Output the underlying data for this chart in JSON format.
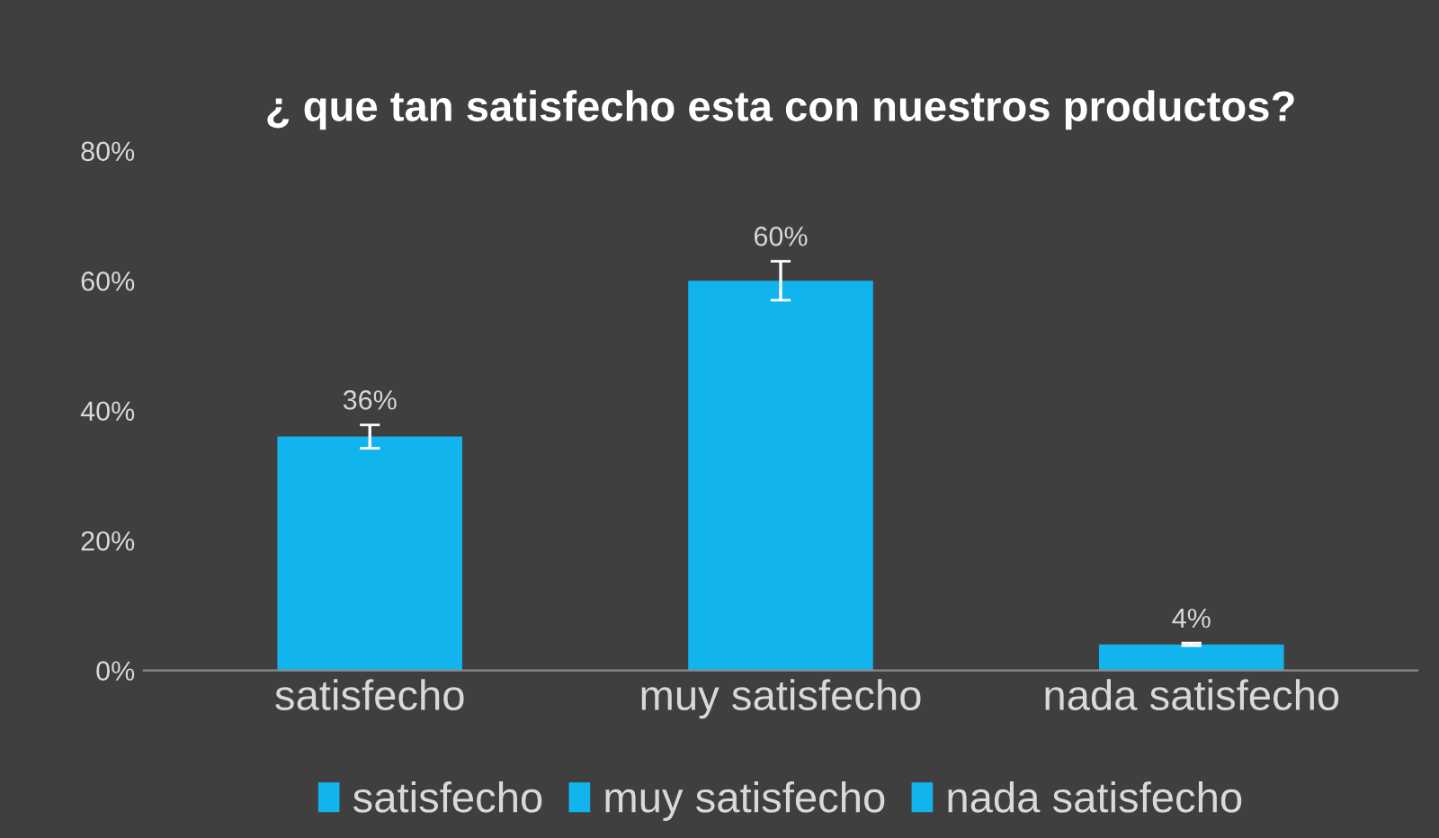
{
  "chart_data": {
    "type": "bar",
    "title": "¿ que tan satisfecho esta con nuestros productos?",
    "categories": [
      "satisfecho",
      "muy satisfecho",
      "nada satisfecho"
    ],
    "series": [
      {
        "name": "satisfecho",
        "color": "#12b4ee",
        "values": [
          36,
          null,
          null
        ],
        "errors": [
          1.8,
          null,
          null
        ],
        "value_labels": [
          "36%",
          null,
          null
        ]
      },
      {
        "name": "muy satisfecho",
        "color": "#12b4ee",
        "values": [
          null,
          60,
          null
        ],
        "errors": [
          null,
          3,
          null
        ],
        "value_labels": [
          null,
          "60%",
          null
        ]
      },
      {
        "name": "nada satisfecho",
        "color": "#12b4ee",
        "values": [
          null,
          null,
          4
        ],
        "errors": [
          null,
          null,
          0.2
        ],
        "value_labels": [
          null,
          null,
          "4%"
        ]
      }
    ],
    "ylim": [
      0,
      80
    ],
    "yticks": [
      {
        "value": 0,
        "label": "0%"
      },
      {
        "value": 20,
        "label": "20%"
      },
      {
        "value": 40,
        "label": "40%"
      },
      {
        "value": 60,
        "label": "60%"
      },
      {
        "value": 80,
        "label": "80%"
      }
    ],
    "legend": "bottom"
  }
}
